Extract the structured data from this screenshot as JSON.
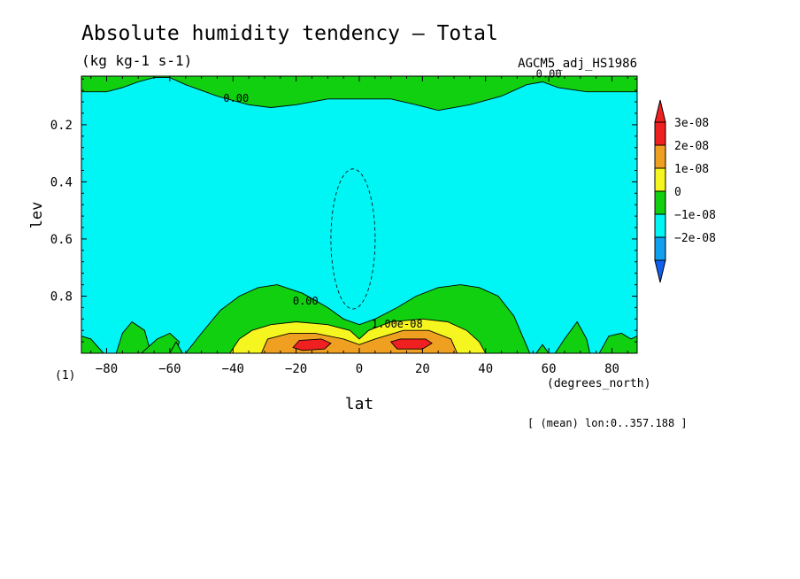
{
  "chart_data": {
    "type": "heatmap",
    "title": "Absolute humidity tendency — Total",
    "subtitle": "(kg kg-1 s-1)",
    "run_label": "AGCM5_adj_HS1986",
    "xlabel": "lat",
    "x_unit": "(degrees_north)",
    "ylabel": "lev",
    "y_unit": "(1)",
    "mean_note": "[ (mean) lon:0..357.188 ]",
    "xlim": [
      -88,
      88
    ],
    "ylim": [
      1.0,
      0.03
    ],
    "x_ticks": [
      -80,
      -60,
      -40,
      -20,
      0,
      20,
      40,
      60,
      80
    ],
    "x_tick_labels": [
      "−80",
      "−60",
      "−40",
      "−20",
      "0",
      "20",
      "40",
      "60",
      "80"
    ],
    "y_ticks": [
      0.2,
      0.4,
      0.6,
      0.8
    ],
    "y_tick_labels": [
      "0.2",
      "0.4",
      "0.6",
      "0.8"
    ],
    "contour_labels": [
      {
        "text": "0.00",
        "lat": -39,
        "lev": 0.12
      },
      {
        "text": "0.00",
        "lat": 60,
        "lev": 0.035
      },
      {
        "text": "0.00",
        "lat": -17,
        "lev": 0.83
      },
      {
        "text": "1.00e-08",
        "lat": 12,
        "lev": 0.91
      }
    ],
    "levels": [
      {
        "label": "3e-08",
        "color": "#f02020"
      },
      {
        "label": "2e-08",
        "color": "#f0a020"
      },
      {
        "label": "1e-08",
        "color": "#f5f520"
      },
      {
        "label": "0",
        "color": "#10d010"
      },
      {
        "label": "−1e-08",
        "color": "#00f5f5"
      },
      {
        "label": "−2e-08",
        "color": "#10a0f0"
      }
    ],
    "over_color": "#f02020",
    "under_color": "#1060f0",
    "background_field": "#00f5f5",
    "regions": [
      {
        "level": "0",
        "description": "positive tendency near model top",
        "points": [
          [
            -88,
            0.03
          ],
          [
            88,
            0.03
          ],
          [
            88,
            0.085
          ],
          [
            72,
            0.085
          ],
          [
            63,
            0.07
          ],
          [
            58,
            0.05
          ],
          [
            53,
            0.06
          ],
          [
            45,
            0.1
          ],
          [
            35,
            0.13
          ],
          [
            25,
            0.15
          ],
          [
            18,
            0.13
          ],
          [
            10,
            0.11
          ],
          [
            -10,
            0.11
          ],
          [
            -20,
            0.13
          ],
          [
            -28,
            0.14
          ],
          [
            -35,
            0.13
          ],
          [
            -45,
            0.1
          ],
          [
            -55,
            0.06
          ],
          [
            -60,
            0.035
          ],
          [
            -65,
            0.035
          ],
          [
            -70,
            0.05
          ],
          [
            -75,
            0.07
          ],
          [
            -80,
            0.085
          ],
          [
            -88,
            0.085
          ]
        ]
      },
      {
        "level": "0",
        "description": "lower troposphere positive tendency",
        "points": [
          [
            -55,
            1.0
          ],
          [
            -50,
            0.93
          ],
          [
            -44,
            0.85
          ],
          [
            -38,
            0.8
          ],
          [
            -32,
            0.77
          ],
          [
            -26,
            0.76
          ],
          [
            -18,
            0.79
          ],
          [
            -10,
            0.84
          ],
          [
            -5,
            0.88
          ],
          [
            0,
            0.9
          ],
          [
            5,
            0.88
          ],
          [
            12,
            0.84
          ],
          [
            18,
            0.8
          ],
          [
            25,
            0.77
          ],
          [
            32,
            0.76
          ],
          [
            38,
            0.77
          ],
          [
            44,
            0.8
          ],
          [
            49,
            0.87
          ],
          [
            54,
            1.0
          ]
        ]
      },
      {
        "level": "0",
        "description": "surface spot",
        "points": [
          [
            -88,
            1.0
          ],
          [
            -88,
            0.94
          ],
          [
            -85,
            0.95
          ],
          [
            -81,
            1.0
          ]
        ]
      },
      {
        "level": "0",
        "description": "surface spot",
        "points": [
          [
            -77,
            1.0
          ],
          [
            -75,
            0.93
          ],
          [
            -72,
            0.89
          ],
          [
            -68,
            0.92
          ],
          [
            -66,
            1.0
          ]
        ]
      },
      {
        "level": "0",
        "description": "surface spot",
        "points": [
          [
            -69,
            1.0
          ],
          [
            -64,
            0.95
          ],
          [
            -60,
            0.93
          ],
          [
            -57,
            0.96
          ],
          [
            -58,
            1.0
          ]
        ]
      },
      {
        "level": "0",
        "description": "surface spot",
        "points": [
          [
            -60,
            1.0
          ],
          [
            -58,
            0.96
          ],
          [
            -56,
            1.0
          ]
        ]
      },
      {
        "level": "0",
        "description": "surface spot",
        "points": [
          [
            62,
            1.0
          ],
          [
            65,
            0.95
          ],
          [
            69,
            0.89
          ],
          [
            72,
            0.95
          ],
          [
            73,
            1.0
          ]
        ]
      },
      {
        "level": "0",
        "description": "surface spot",
        "points": [
          [
            76,
            1.0
          ],
          [
            79,
            0.94
          ],
          [
            83,
            0.93
          ],
          [
            86,
            0.95
          ],
          [
            88,
            0.94
          ],
          [
            88,
            1.0
          ]
        ]
      },
      {
        "level": "0",
        "description": "surface spot",
        "points": [
          [
            56,
            1.0
          ],
          [
            58,
            0.97
          ],
          [
            60,
            1.0
          ]
        ]
      },
      {
        "level": "1e-08",
        "description": "yellow band",
        "points": [
          [
            -41,
            1.0
          ],
          [
            -38,
            0.95
          ],
          [
            -34,
            0.92
          ],
          [
            -28,
            0.9
          ],
          [
            -20,
            0.89
          ],
          [
            -10,
            0.9
          ],
          [
            -3,
            0.92
          ],
          [
            0,
            0.95
          ],
          [
            3,
            0.92
          ],
          [
            10,
            0.89
          ],
          [
            20,
            0.88
          ],
          [
            28,
            0.89
          ],
          [
            34,
            0.92
          ],
          [
            38,
            0.96
          ],
          [
            40,
            1.0
          ]
        ]
      },
      {
        "level": "2e-08",
        "description": "orange band",
        "points": [
          [
            -31,
            1.0
          ],
          [
            -29,
            0.95
          ],
          [
            -22,
            0.93
          ],
          [
            -14,
            0.93
          ],
          [
            -5,
            0.95
          ],
          [
            0,
            0.97
          ],
          [
            5,
            0.95
          ],
          [
            14,
            0.92
          ],
          [
            22,
            0.92
          ],
          [
            29,
            0.95
          ],
          [
            31,
            1.0
          ]
        ]
      },
      {
        "level": "3e-08",
        "description": "southern maximum",
        "points": [
          [
            -21,
            0.98
          ],
          [
            -19,
            0.955
          ],
          [
            -12,
            0.95
          ],
          [
            -9,
            0.965
          ],
          [
            -11,
            0.985
          ],
          [
            -18,
            0.99
          ]
        ]
      },
      {
        "level": "3e-08",
        "description": "northern maximum",
        "points": [
          [
            10,
            0.96
          ],
          [
            13,
            0.95
          ],
          [
            21,
            0.95
          ],
          [
            23,
            0.965
          ],
          [
            20,
            0.985
          ],
          [
            12,
            0.985
          ]
        ]
      }
    ],
    "negative_contour": {
      "level": "−1e-08",
      "center": [
        -2,
        0.6
      ],
      "half_width_lat": 7,
      "lev_range": [
        0.36,
        0.85
      ]
    }
  }
}
